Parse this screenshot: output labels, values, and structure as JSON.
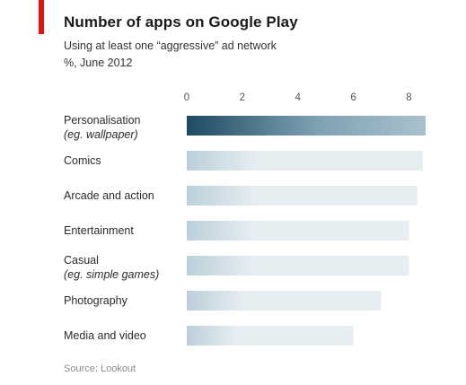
{
  "header": {
    "title": "Number of apps on Google Play",
    "subtitle_line1": "Using at least one “aggressive” ad network",
    "subtitle_line2": "%, June 2012"
  },
  "footer": {
    "source": "Source: Lookout"
  },
  "colors": {
    "accent_tag": "#e3120b",
    "bar_top_dark": "#1d4a63",
    "bar_top_light": "#7fa2b4",
    "bar_dark": "#bccfd9",
    "bar_light": "#e6eef2"
  },
  "chart_data": {
    "type": "bar",
    "orientation": "horizontal",
    "xlim": [
      0,
      8.6
    ],
    "xticks": [
      0,
      2,
      4,
      6,
      8
    ],
    "grid": false,
    "categories": [
      {
        "label": "Personalisation",
        "sublabel": "(eg. wallpaper)"
      },
      {
        "label": "Comics",
        "sublabel": ""
      },
      {
        "label": "Arcade and action",
        "sublabel": ""
      },
      {
        "label": "Entertainment",
        "sublabel": ""
      },
      {
        "label": "Casual",
        "sublabel": "(eg. simple games)"
      },
      {
        "label": "Photography",
        "sublabel": ""
      },
      {
        "label": "Media and video",
        "sublabel": ""
      }
    ],
    "values": [
      8.6,
      8.5,
      8.3,
      8.0,
      8.0,
      7.0,
      6.0
    ]
  }
}
